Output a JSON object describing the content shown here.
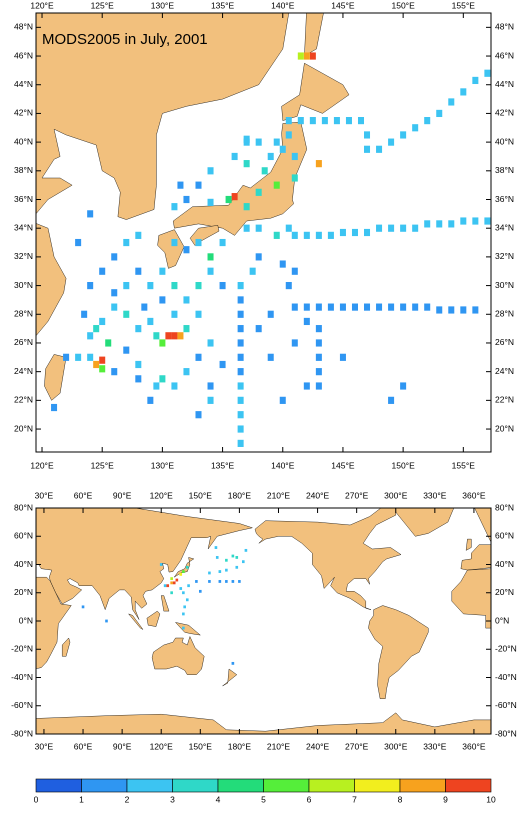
{
  "top_map": {
    "title": "MODS2005 in July, 2001",
    "xlim": [
      119.5,
      157.3
    ],
    "ylim": [
      18.4,
      49
    ],
    "xticks": [
      {
        "value": 120,
        "label": "120°E"
      },
      {
        "value": 125,
        "label": "125°E"
      },
      {
        "value": 130,
        "label": "130°E"
      },
      {
        "value": 135,
        "label": "135°E"
      },
      {
        "value": 140,
        "label": "140°E"
      },
      {
        "value": 145,
        "label": "145°E"
      },
      {
        "value": 150,
        "label": "150°E"
      },
      {
        "value": 155,
        "label": "155°E"
      }
    ],
    "yticks": [
      {
        "value": 20,
        "label": "20°N"
      },
      {
        "value": 22,
        "label": "22°N"
      },
      {
        "value": 24,
        "label": "24°N"
      },
      {
        "value": 26,
        "label": "26°N"
      },
      {
        "value": 28,
        "label": "28°N"
      },
      {
        "value": 30,
        "label": "30°N"
      },
      {
        "value": 32,
        "label": "32°N"
      },
      {
        "value": 34,
        "label": "34°N"
      },
      {
        "value": 36,
        "label": "36°N"
      },
      {
        "value": 38,
        "label": "38°N"
      },
      {
        "value": 40,
        "label": "40°N"
      },
      {
        "value": 42,
        "label": "42°N"
      },
      {
        "value": 44,
        "label": "44°N"
      },
      {
        "value": 46,
        "label": "46°N"
      },
      {
        "value": 48,
        "label": "48°N"
      }
    ],
    "observations": [
      [
        141,
        28.5,
        1
      ],
      [
        142,
        28.5,
        1
      ],
      [
        143,
        28.5,
        1
      ],
      [
        144,
        28.5,
        1
      ],
      [
        145,
        28.5,
        1
      ],
      [
        146,
        28.5,
        1
      ],
      [
        147,
        28.5,
        1
      ],
      [
        148,
        28.5,
        1
      ],
      [
        149,
        28.5,
        1
      ],
      [
        150,
        28.5,
        1
      ],
      [
        151,
        28.5,
        1
      ],
      [
        152,
        28.5,
        1
      ],
      [
        153,
        28.3,
        1
      ],
      [
        154,
        28.3,
        1
      ],
      [
        155,
        28.3,
        1
      ],
      [
        156,
        28.3,
        1
      ],
      [
        141,
        33.5,
        2
      ],
      [
        142,
        33.5,
        2
      ],
      [
        143,
        33.5,
        2
      ],
      [
        144,
        33.5,
        2
      ],
      [
        145,
        33.7,
        2
      ],
      [
        146,
        33.7,
        2
      ],
      [
        147,
        33.7,
        2
      ],
      [
        148,
        34,
        2
      ],
      [
        149,
        34,
        2
      ],
      [
        150,
        34,
        2
      ],
      [
        151,
        34,
        2
      ],
      [
        152,
        34.3,
        2
      ],
      [
        153,
        34.3,
        2
      ],
      [
        154,
        34.3,
        2
      ],
      [
        155,
        34.5,
        2
      ],
      [
        156,
        34.5,
        2
      ],
      [
        157,
        34.5,
        2
      ],
      [
        140.5,
        41.5,
        2
      ],
      [
        141.5,
        41.5,
        2
      ],
      [
        142.5,
        41.5,
        2
      ],
      [
        143.5,
        41.5,
        2
      ],
      [
        144.5,
        41.5,
        2
      ],
      [
        145.5,
        41.5,
        2
      ],
      [
        146.5,
        41.5,
        2
      ],
      [
        147,
        40.5,
        2
      ],
      [
        147,
        39.5,
        2
      ],
      [
        148,
        39.5,
        2
      ],
      [
        149,
        40,
        2
      ],
      [
        150,
        40.5,
        2
      ],
      [
        151,
        41,
        2
      ],
      [
        152,
        41.5,
        2
      ],
      [
        153,
        42,
        2
      ],
      [
        154,
        42.8,
        2
      ],
      [
        155,
        43.5,
        2
      ],
      [
        156,
        44.3,
        2
      ],
      [
        157,
        44.8,
        2
      ],
      [
        136.5,
        19,
        2
      ],
      [
        136.5,
        20,
        2
      ],
      [
        136.5,
        21,
        2
      ],
      [
        136.5,
        22,
        2
      ],
      [
        136.5,
        23,
        2
      ],
      [
        136.5,
        24,
        1
      ],
      [
        136.5,
        25,
        1
      ],
      [
        136.5,
        26,
        1
      ],
      [
        136.5,
        27,
        1
      ],
      [
        136.5,
        28,
        1
      ],
      [
        136.5,
        29,
        1
      ],
      [
        136.5,
        30,
        2
      ],
      [
        143,
        27,
        1
      ],
      [
        143,
        26,
        1
      ],
      [
        143,
        25,
        1
      ],
      [
        143,
        24,
        1
      ],
      [
        142,
        27.5,
        1
      ],
      [
        141,
        26,
        1
      ],
      [
        142,
        23,
        1
      ],
      [
        143,
        23,
        1
      ],
      [
        140.5,
        30,
        1
      ],
      [
        141,
        31,
        1
      ],
      [
        140,
        31.5,
        1
      ],
      [
        138,
        36.5,
        3
      ],
      [
        138.5,
        38,
        3
      ],
      [
        139,
        39,
        2
      ],
      [
        137,
        35.5,
        3
      ],
      [
        136,
        36.2,
        9
      ],
      [
        135.5,
        36,
        4
      ],
      [
        134,
        35.8,
        2
      ],
      [
        139.5,
        33.5,
        3
      ],
      [
        140.5,
        34,
        2
      ],
      [
        138,
        34,
        2
      ],
      [
        137,
        34,
        2
      ],
      [
        140,
        39.5,
        2
      ],
      [
        140.5,
        40.5,
        2
      ],
      [
        139.5,
        40,
        2
      ],
      [
        138,
        40,
        2
      ],
      [
        137,
        40,
        2
      ],
      [
        136,
        39,
        2
      ],
      [
        137,
        38.5,
        3
      ],
      [
        139.5,
        37,
        5
      ],
      [
        142.5,
        46,
        9
      ],
      [
        142,
        46,
        8
      ],
      [
        141.5,
        46,
        6
      ],
      [
        143,
        38.5,
        8
      ],
      [
        141,
        39,
        2
      ],
      [
        134,
        38,
        2
      ],
      [
        133,
        37,
        1
      ],
      [
        131.5,
        37,
        1
      ],
      [
        132,
        36,
        1
      ],
      [
        131,
        35.5,
        2
      ],
      [
        122,
        25,
        1
      ],
      [
        123,
        25,
        2
      ],
      [
        124,
        25,
        2
      ],
      [
        125,
        24.8,
        9
      ],
      [
        124.5,
        24.5,
        8
      ],
      [
        125,
        24.2,
        5
      ],
      [
        124,
        26.5,
        2
      ],
      [
        124.5,
        27,
        3
      ],
      [
        125,
        27.5,
        2
      ],
      [
        123.5,
        28,
        1
      ],
      [
        125.5,
        26,
        4
      ],
      [
        126,
        28.5,
        2
      ],
      [
        127,
        28,
        3
      ],
      [
        128,
        27,
        2
      ],
      [
        128.5,
        28.5,
        1
      ],
      [
        129,
        27.5,
        2
      ],
      [
        129.5,
        26.5,
        3
      ],
      [
        130.5,
        26.5,
        10
      ],
      [
        131,
        26.5,
        9
      ],
      [
        131.5,
        26.5,
        8
      ],
      [
        130,
        26,
        5
      ],
      [
        132,
        27,
        3
      ],
      [
        131,
        28,
        2
      ],
      [
        130,
        29,
        1
      ],
      [
        129,
        30,
        2
      ],
      [
        128,
        31,
        1
      ],
      [
        127,
        30,
        2
      ],
      [
        126,
        29.5,
        1
      ],
      [
        130,
        31,
        2
      ],
      [
        131,
        30,
        3
      ],
      [
        132,
        29,
        2
      ],
      [
        133,
        28,
        2
      ],
      [
        133,
        30,
        3
      ],
      [
        134,
        31,
        2
      ],
      [
        134,
        32,
        4
      ],
      [
        133,
        33,
        2
      ],
      [
        132,
        32.5,
        1
      ],
      [
        131,
        33,
        2
      ],
      [
        135,
        33,
        2
      ],
      [
        135,
        30,
        1
      ],
      [
        134,
        26,
        2
      ],
      [
        133,
        25,
        1
      ],
      [
        132,
        24,
        2
      ],
      [
        131,
        23,
        2
      ],
      [
        130,
        23.5,
        3
      ],
      [
        129.5,
        23,
        2
      ],
      [
        128,
        24.5,
        2
      ],
      [
        127,
        25.5,
        1
      ],
      [
        126,
        24,
        1
      ],
      [
        128,
        23.5,
        1
      ],
      [
        134,
        23,
        1
      ],
      [
        135,
        24.5,
        1
      ],
      [
        139,
        25,
        1
      ],
      [
        138,
        27,
        1
      ],
      [
        139,
        28,
        1
      ],
      [
        137.5,
        31,
        2
      ],
      [
        138,
        32,
        1
      ],
      [
        126,
        32,
        1
      ],
      [
        127,
        33,
        2
      ],
      [
        125,
        31,
        1
      ],
      [
        124,
        30,
        1
      ],
      [
        128,
        33.5,
        2
      ],
      [
        133,
        21,
        1
      ],
      [
        134,
        22,
        2
      ],
      [
        129,
        22,
        1
      ],
      [
        121,
        21.5,
        1
      ],
      [
        140,
        22,
        1
      ],
      [
        149,
        22,
        1
      ],
      [
        145,
        25,
        1
      ],
      [
        150,
        23,
        1
      ],
      [
        137,
        40.2,
        2
      ],
      [
        141,
        37.5,
        3
      ],
      [
        124,
        35,
        1
      ],
      [
        123,
        33,
        1
      ]
    ]
  },
  "bottom_map": {
    "xlim": [
      23.9,
      373.1
    ],
    "ylim": [
      -80,
      80
    ],
    "xticks": [
      {
        "value": 30,
        "label": "30°E"
      },
      {
        "value": 60,
        "label": "60°E"
      },
      {
        "value": 90,
        "label": "90°E"
      },
      {
        "value": 120,
        "label": "120°E"
      },
      {
        "value": 150,
        "label": "150°E"
      },
      {
        "value": 180,
        "label": "180°E"
      },
      {
        "value": 210,
        "label": "210°E"
      },
      {
        "value": 240,
        "label": "240°E"
      },
      {
        "value": 270,
        "label": "270°E"
      },
      {
        "value": 300,
        "label": "300°E"
      },
      {
        "value": 330,
        "label": "330°E"
      },
      {
        "value": 360,
        "label": "360°E"
      }
    ],
    "yticks": [
      {
        "value": -80,
        "label": "-80°N"
      },
      {
        "value": -60,
        "label": "-60°N"
      },
      {
        "value": -40,
        "label": "-40°N"
      },
      {
        "value": -20,
        "label": "-20°N"
      },
      {
        "value": 0,
        "label": "0°N"
      },
      {
        "value": 20,
        "label": "20°N"
      },
      {
        "value": 40,
        "label": "40°N"
      },
      {
        "value": 60,
        "label": "60°N"
      },
      {
        "value": 80,
        "label": "80°N"
      }
    ],
    "observations": [
      [
        123,
        25,
        2
      ],
      [
        125,
        25,
        9
      ],
      [
        128,
        27,
        8
      ],
      [
        130,
        27,
        10
      ],
      [
        132,
        29,
        9
      ],
      [
        128,
        30,
        6
      ],
      [
        135,
        33,
        7
      ],
      [
        137,
        35,
        5
      ],
      [
        140,
        38,
        3
      ],
      [
        141,
        25,
        2
      ],
      [
        147,
        28,
        1
      ],
      [
        157,
        28,
        1
      ],
      [
        165,
        28,
        1
      ],
      [
        170,
        28,
        1
      ],
      [
        175,
        28,
        1
      ],
      [
        180,
        28,
        1
      ],
      [
        157,
        34,
        2
      ],
      [
        165,
        35,
        2
      ],
      [
        170,
        36,
        2
      ],
      [
        178,
        38,
        2
      ],
      [
        183,
        42,
        2
      ],
      [
        185,
        50,
        2
      ],
      [
        178,
        45,
        3
      ],
      [
        175,
        46,
        3
      ],
      [
        170,
        43,
        3
      ],
      [
        140,
        15,
        2
      ],
      [
        138,
        10,
        2
      ],
      [
        137,
        5,
        2
      ],
      [
        137,
        -5,
        2
      ],
      [
        137,
        20,
        2
      ],
      [
        150,
        21,
        1
      ],
      [
        175,
        -30,
        1
      ],
      [
        78,
        0,
        1
      ],
      [
        60,
        10,
        1
      ],
      [
        120,
        40,
        2
      ],
      [
        162,
        52,
        2
      ],
      [
        163,
        45,
        2
      ],
      [
        128,
        20,
        3
      ],
      [
        135,
        23,
        2
      ]
    ]
  },
  "colorbar": {
    "ticks": [
      0,
      1,
      2,
      3,
      4,
      5,
      6,
      7,
      8,
      9,
      10
    ],
    "colors": [
      "#1f5fe0",
      "#2f96f2",
      "#3cc4f2",
      "#2fd8c8",
      "#23dc7a",
      "#55ee3a",
      "#b8f020",
      "#f2ee1e",
      "#f7a21e",
      "#ee4420"
    ]
  }
}
